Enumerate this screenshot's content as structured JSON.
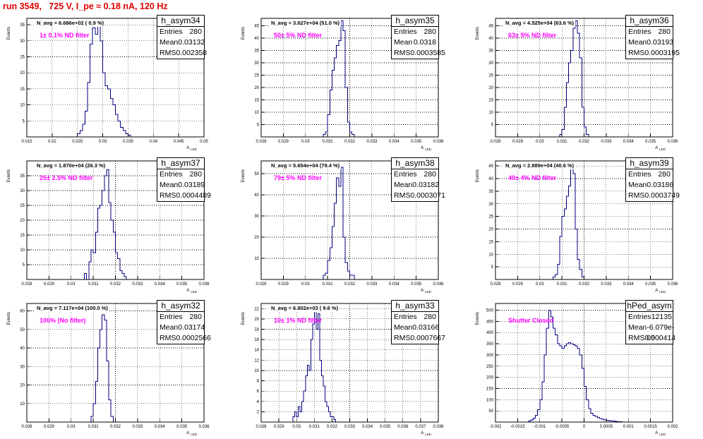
{
  "run_title": "run 3549,   725 V, I_pe ≈ 0.18 nA, 120 Hz",
  "stat_labels": {
    "entries": "Entries",
    "mean": "Mean",
    "rms": "RMS"
  },
  "axis_labels": {
    "y": "Events",
    "x": "A",
    "x_sub": "LED"
  },
  "chart_data": [
    {
      "type": "bar",
      "title": "h_asym34",
      "navg": "N_avg = 6.686e+02 ( 0.9 %)",
      "filter_label": "1± 0.1% ND filter",
      "entries": "280",
      "mean": "0.03132",
      "rms": "0.002358",
      "xlim": [
        0.015,
        0.05
      ],
      "ylim": [
        0,
        37
      ],
      "xticks": [
        0.015,
        0.02,
        0.025,
        0.03,
        0.035,
        0.04,
        0.045,
        0.05
      ],
      "xticklabels": [
        "0.015",
        "0.02",
        "0.025",
        "0.03",
        "0.035",
        "0.04",
        "0.045",
        "0.05"
      ],
      "yticks": [
        5,
        10,
        15,
        20,
        25,
        30,
        35
      ],
      "yticklabels": [
        "5",
        "10",
        "15",
        "20",
        "25",
        "30",
        "35"
      ],
      "bins_start": 0.025,
      "bin_width": 0.0005,
      "values": [
        1,
        2,
        4,
        8,
        17,
        29,
        34,
        32,
        35,
        30,
        20,
        16,
        15,
        12,
        10,
        7,
        5,
        3,
        2,
        1,
        0.5
      ]
    },
    {
      "type": "bar",
      "title": "h_asym35",
      "navg": "N_avg = 3.627e+04 (51.0 %)",
      "filter_label": "50± 5% ND filter",
      "entries": "280",
      "mean": "0.0318",
      "rms": "0.0003585",
      "xlim": [
        0.028,
        0.036
      ],
      "ylim": [
        0,
        48
      ],
      "xticks": [
        0.028,
        0.029,
        0.03,
        0.031,
        0.032,
        0.033,
        0.034,
        0.035,
        0.036
      ],
      "xticklabels": [
        "0.028",
        "0.029",
        "0.03",
        "0.031",
        "0.032",
        "0.033",
        "0.034",
        "0.035",
        "0.036"
      ],
      "yticks": [
        5,
        10,
        15,
        20,
        25,
        30,
        35,
        40,
        45
      ],
      "yticklabels": [
        "5",
        "10",
        "15",
        "20",
        "25",
        "30",
        "35",
        "40",
        "45"
      ],
      "bins_start": 0.0308,
      "bin_width": 0.0001,
      "values": [
        1,
        2,
        9,
        19,
        27,
        32,
        37,
        39,
        47,
        43,
        20,
        6,
        2,
        1
      ]
    },
    {
      "type": "bar",
      "title": "h_asym36",
      "navg": "N_avg = 4.525e+04 (63.6 %)",
      "filter_label": "63± 5% ND filter",
      "entries": "280",
      "mean": "0.03193",
      "rms": "0.0003195",
      "xlim": [
        0.028,
        0.036
      ],
      "ylim": [
        0,
        48
      ],
      "xticks": [
        0.028,
        0.029,
        0.03,
        0.031,
        0.032,
        0.033,
        0.034,
        0.035,
        0.036
      ],
      "xticklabels": [
        "0.028",
        "0.029",
        "0.03",
        "0.031",
        "0.032",
        "0.033",
        "0.034",
        "0.035",
        "0.036"
      ],
      "yticks": [
        5,
        10,
        15,
        20,
        25,
        30,
        35,
        40,
        45
      ],
      "yticklabels": [
        "5",
        "10",
        "15",
        "20",
        "25",
        "30",
        "35",
        "40",
        "45"
      ],
      "bins_start": 0.0309,
      "bin_width": 0.0001,
      "values": [
        1,
        3,
        12,
        22,
        30,
        35,
        44,
        47,
        42,
        32,
        12,
        4,
        1
      ]
    },
    {
      "type": "bar",
      "title": "h_asym37",
      "navg": "N_avg = 1.870e+04 (26.3 %)",
      "filter_label": "25± 2.5% ND filter",
      "entries": "280",
      "mean": "0.03189",
      "rms": "0.0004489",
      "xlim": [
        0.028,
        0.036
      ],
      "ylim": [
        0,
        40
      ],
      "xticks": [
        0.028,
        0.029,
        0.03,
        0.031,
        0.032,
        0.033,
        0.034,
        0.035,
        0.036
      ],
      "xticklabels": [
        "0.028",
        "0.029",
        "0.03",
        "0.031",
        "0.032",
        "0.033",
        "0.034",
        "0.035",
        "0.036"
      ],
      "yticks": [
        5,
        10,
        15,
        20,
        25,
        30,
        35
      ],
      "yticklabels": [
        "5",
        "10",
        "15",
        "20",
        "25",
        "30",
        "35"
      ],
      "bins_start": 0.0306,
      "bin_width": 0.0001,
      "values": [
        2,
        0,
        6,
        10,
        9,
        16,
        24,
        25,
        30,
        35,
        37,
        26,
        20,
        16,
        9,
        7,
        3,
        2,
        1
      ]
    },
    {
      "type": "bar",
      "title": "h_asym38",
      "navg": "N_avg = 5.654e+04 (79.4 %)",
      "filter_label": "79± 5% ND filter",
      "entries": "280",
      "mean": "0.03182",
      "rms": "0.0003071",
      "xlim": [
        0.028,
        0.036
      ],
      "ylim": [
        0,
        56
      ],
      "xticks": [
        0.028,
        0.029,
        0.03,
        0.031,
        0.032,
        0.033,
        0.034,
        0.035,
        0.036
      ],
      "xticklabels": [
        "0.028",
        "0.029",
        "0.03",
        "0.031",
        "0.032",
        "0.033",
        "0.034",
        "0.035",
        "0.036"
      ],
      "yticks": [
        10,
        20,
        30,
        40,
        50
      ],
      "yticklabels": [
        "10",
        "20",
        "30",
        "40",
        "50"
      ],
      "bins_start": 0.0308,
      "bin_width": 0.0001,
      "values": [
        2,
        3,
        9,
        15,
        25,
        36,
        48,
        44,
        53,
        20,
        8,
        4,
        2,
        2
      ]
    },
    {
      "type": "bar",
      "title": "h_asym39",
      "navg": "N_avg = 2.889e+04 (40.6 %)",
      "filter_label": "40± 4% ND filter",
      "entries": "280",
      "mean": "0.03186",
      "rms": "0.0003749",
      "xlim": [
        0.028,
        0.036
      ],
      "ylim": [
        0,
        47
      ],
      "xticks": [
        0.028,
        0.029,
        0.03,
        0.031,
        0.032,
        0.033,
        0.034,
        0.035,
        0.036
      ],
      "xticklabels": [
        "0.028",
        "0.029",
        "0.03",
        "0.031",
        "0.032",
        "0.033",
        "0.034",
        "0.035",
        "0.036"
      ],
      "yticks": [
        5,
        10,
        15,
        20,
        25,
        30,
        35,
        40,
        45
      ],
      "yticklabels": [
        "5",
        "10",
        "15",
        "20",
        "25",
        "30",
        "35",
        "40",
        "45"
      ],
      "bins_start": 0.0306,
      "bin_width": 0.0001,
      "values": [
        1,
        2,
        6,
        17,
        25,
        28,
        33,
        37,
        44,
        42,
        20,
        8,
        4,
        1
      ]
    },
    {
      "type": "bar",
      "title": "h_asym32",
      "navg": "N_avg = 7.117e+04 (100.0 %)",
      "filter_label": "100% (No filter)",
      "entries": "280",
      "mean": "0.03174",
      "rms": "0.0002566",
      "xlim": [
        0.028,
        0.036
      ],
      "ylim": [
        0,
        64
      ],
      "xticks": [
        0.028,
        0.029,
        0.03,
        0.031,
        0.032,
        0.033,
        0.034,
        0.035,
        0.036
      ],
      "xticklabels": [
        "0.028",
        "0.029",
        "0.03",
        "0.031",
        "0.032",
        "0.033",
        "0.034",
        "0.035",
        "0.036"
      ],
      "yticks": [
        10,
        20,
        30,
        40,
        50,
        60
      ],
      "yticklabels": [
        "10",
        "20",
        "30",
        "40",
        "50",
        "60"
      ],
      "bins_start": 0.0309,
      "bin_width": 0.0001,
      "values": [
        3,
        10,
        22,
        40,
        50,
        58,
        55,
        33,
        12,
        3
      ]
    },
    {
      "type": "bar",
      "title": "h_asym33",
      "navg": "N_avg = 6.802e+03 ( 9.6 %)",
      "filter_label": "10± 1% ND filter",
      "entries": "280",
      "mean": "0.03166",
      "rms": "0.0007667",
      "xlim": [
        0.028,
        0.038
      ],
      "ylim": [
        0,
        23
      ],
      "xticks": [
        0.028,
        0.029,
        0.03,
        0.031,
        0.032,
        0.033,
        0.034,
        0.035,
        0.036,
        0.037,
        0.038
      ],
      "xticklabels": [
        "0.028",
        "0.029",
        "0.03",
        "0.031",
        "0.032",
        "0.033",
        "0.034",
        "0.035",
        "0.036",
        "0.037",
        "0.038"
      ],
      "yticks": [
        2,
        4,
        6,
        8,
        10,
        12,
        14,
        16,
        18,
        20,
        22
      ],
      "yticklabels": [
        "2",
        "4",
        "6",
        "8",
        "10",
        "12",
        "14",
        "16",
        "18",
        "20",
        "22"
      ],
      "bins_start": 0.0298,
      "bin_width": 0.0001,
      "values": [
        1,
        2,
        1,
        3,
        2,
        4,
        6,
        9,
        11,
        10,
        16,
        19,
        22,
        18,
        21,
        12,
        9,
        7,
        4,
        3,
        2,
        1,
        1,
        0.5
      ]
    },
    {
      "type": "bar",
      "title": "hPed_asym",
      "navg": "",
      "filter_label": "Shutter Closed",
      "entries": "12135",
      "mean": "-6.079e-05",
      "rms": "0.000414",
      "xlim": [
        -0.002,
        0.002
      ],
      "ylim": [
        0,
        530
      ],
      "xticks": [
        -0.002,
        -0.0015,
        -0.001,
        -0.0005,
        0,
        0.0005,
        0.001,
        0.0015,
        0.002
      ],
      "xticklabels": [
        "-0.002",
        "-0.0015",
        "-0.001",
        "-0.0005",
        "0",
        "0.0005",
        "0.001",
        "0.0015",
        "0.002"
      ],
      "yticks": [
        50,
        100,
        150,
        200,
        250,
        300,
        350,
        400,
        450,
        500
      ],
      "yticklabels": [
        "50",
        "100",
        "150",
        "200",
        "250",
        "300",
        "350",
        "400",
        "450",
        "500"
      ],
      "bins_start": -0.00125,
      "bin_width": 5e-05,
      "values": [
        5,
        10,
        18,
        30,
        55,
        100,
        180,
        300,
        420,
        500,
        470,
        420,
        390,
        350,
        340,
        330,
        340,
        350,
        355,
        350,
        345,
        340,
        330,
        300,
        240,
        160,
        100,
        60,
        40,
        30,
        25,
        20,
        15,
        12,
        10,
        8,
        6,
        5,
        4,
        3,
        2,
        1
      ]
    }
  ]
}
